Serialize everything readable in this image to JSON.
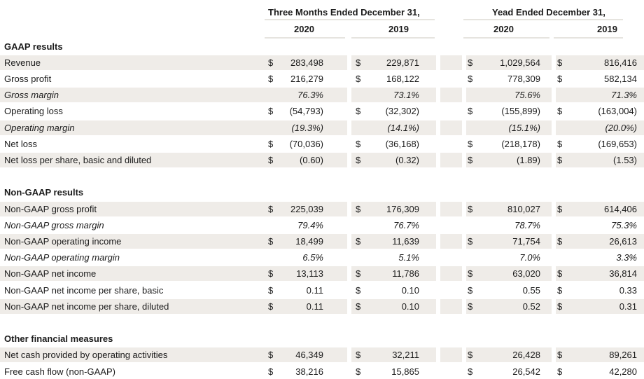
{
  "header": {
    "group1": "Three Months Ended December 31,",
    "group2": "Yead Ended December 31,",
    "years": [
      "2020",
      "2019",
      "2020",
      "2019"
    ]
  },
  "rows": [
    {
      "type": "section",
      "label": "GAAP results"
    },
    {
      "type": "data",
      "label": "Revenue",
      "style": "normal",
      "shade": true,
      "cur": true,
      "values": [
        "283,498",
        "229,871",
        "1,029,564",
        "816,416"
      ]
    },
    {
      "type": "data",
      "label": "Gross profit",
      "style": "normal",
      "shade": false,
      "cur": true,
      "values": [
        "216,279",
        "168,122",
        "778,309",
        "582,134"
      ]
    },
    {
      "type": "data",
      "label": "Gross margin",
      "style": "italic",
      "shade": true,
      "cur": false,
      "values": [
        "76.3%",
        "73.1%",
        "75.6%",
        "71.3%"
      ]
    },
    {
      "type": "data",
      "label": "Operating loss",
      "style": "normal",
      "shade": false,
      "cur": true,
      "values": [
        "(54,793)",
        "(32,302)",
        "(155,899)",
        "(163,004)"
      ]
    },
    {
      "type": "data",
      "label": "Operating margin",
      "style": "italic",
      "shade": true,
      "cur": false,
      "values": [
        "(19.3%)",
        "(14.1%)",
        "(15.1%)",
        "(20.0%)"
      ]
    },
    {
      "type": "data",
      "label": "Net loss",
      "style": "normal",
      "shade": false,
      "cur": true,
      "values": [
        "(70,036)",
        "(36,168)",
        "(218,178)",
        "(169,653)"
      ]
    },
    {
      "type": "data",
      "label": "Net loss per share, basic and diluted",
      "style": "normal",
      "shade": true,
      "cur": true,
      "values": [
        "(0.60)",
        "(0.32)",
        "(1.89)",
        "(1.53)"
      ]
    },
    {
      "type": "spacer"
    },
    {
      "type": "section",
      "label": "Non-GAAP results"
    },
    {
      "type": "data",
      "label": "Non-GAAP gross profit",
      "style": "normal",
      "shade": true,
      "cur": true,
      "values": [
        "225,039",
        "176,309",
        "810,027",
        "614,406"
      ]
    },
    {
      "type": "data",
      "label": "Non-GAAP gross margin",
      "style": "italic",
      "shade": false,
      "cur": false,
      "values": [
        "79.4%",
        "76.7%",
        "78.7%",
        "75.3%"
      ]
    },
    {
      "type": "data",
      "label": "Non-GAAP operating income",
      "style": "normal",
      "shade": true,
      "cur": true,
      "values": [
        "18,499",
        "11,639",
        "71,754",
        "26,613"
      ]
    },
    {
      "type": "data",
      "label": "Non-GAAP operating margin",
      "style": "italic",
      "shade": false,
      "cur": false,
      "values": [
        "6.5%",
        "5.1%",
        "7.0%",
        "3.3%"
      ]
    },
    {
      "type": "data",
      "label": "Non-GAAP net income",
      "style": "normal",
      "shade": true,
      "cur": true,
      "values": [
        "13,113",
        "11,786",
        "63,020",
        "36,814"
      ]
    },
    {
      "type": "data",
      "label": "Non-GAAP net income per share, basic",
      "style": "normal",
      "shade": false,
      "cur": true,
      "values": [
        "0.11",
        "0.10",
        "0.55",
        "0.33"
      ]
    },
    {
      "type": "data",
      "label": "Non-GAAP net income per share, diluted",
      "style": "normal",
      "shade": true,
      "cur": true,
      "values": [
        "0.11",
        "0.10",
        "0.52",
        "0.31"
      ]
    },
    {
      "type": "spacer"
    },
    {
      "type": "section",
      "label": "Other financial measures"
    },
    {
      "type": "data",
      "label": "Net cash provided by operating activities",
      "style": "normal",
      "shade": true,
      "cur": true,
      "values": [
        "46,349",
        "32,211",
        "26,428",
        "89,261"
      ]
    },
    {
      "type": "data",
      "label": "Free cash flow (non-GAAP)",
      "style": "normal",
      "shade": false,
      "cur": true,
      "values": [
        "38,216",
        "15,865",
        "26,542",
        "42,280"
      ]
    }
  ],
  "currency_symbol": "$",
  "colors": {
    "shade": "#efece8",
    "rule": "#e6e4df",
    "text": "#1b1b1b"
  }
}
